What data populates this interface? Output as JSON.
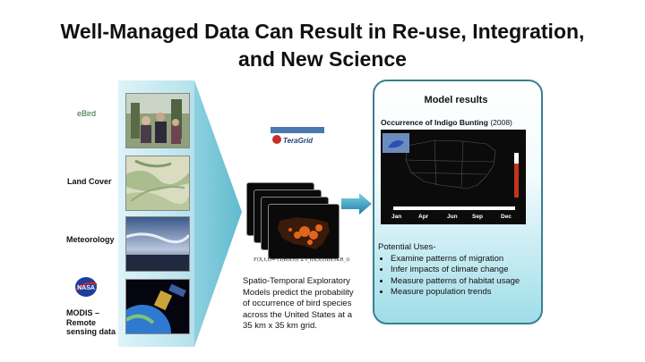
{
  "title_line1": "Well-Managed Data Can Result in Re-use, Integration,",
  "title_line2": "and New Science",
  "sources": [
    {
      "label": "eBird"
    },
    {
      "label": "Land Cover"
    },
    {
      "label": "Meteorology"
    },
    {
      "label": "MODIS –\nRemote\nsensing data"
    }
  ],
  "logo_nasa": "NASA",
  "teragrid": "TeraGrid",
  "formula": "F(X,t,t)= (1/n(s,t)) Σ f_i(X,s,t)I(s,t∈R_i)",
  "explanation": "Spatio-Temporal Exploratory Models predict the probability of occurrence of bird species across the United States at a 35 km x 35 km grid.",
  "panel": {
    "title": "Model results",
    "occurrence_bold": "Occurrence of Indigo Bunting",
    "occurrence_year": " (2008)",
    "months": [
      "Jan",
      "Apr",
      "Jun",
      "Sep",
      "Dec"
    ],
    "uses_heading": "Potential Uses-",
    "uses": [
      "Examine patterns of migration",
      "Infer impacts of climate change",
      "Measure patterns of habitat usage",
      "Measure population trends"
    ]
  },
  "colors": {
    "funnel": "#9bd9e6",
    "panel_border": "#3a7f92",
    "arrow": "#2a8fb0"
  }
}
